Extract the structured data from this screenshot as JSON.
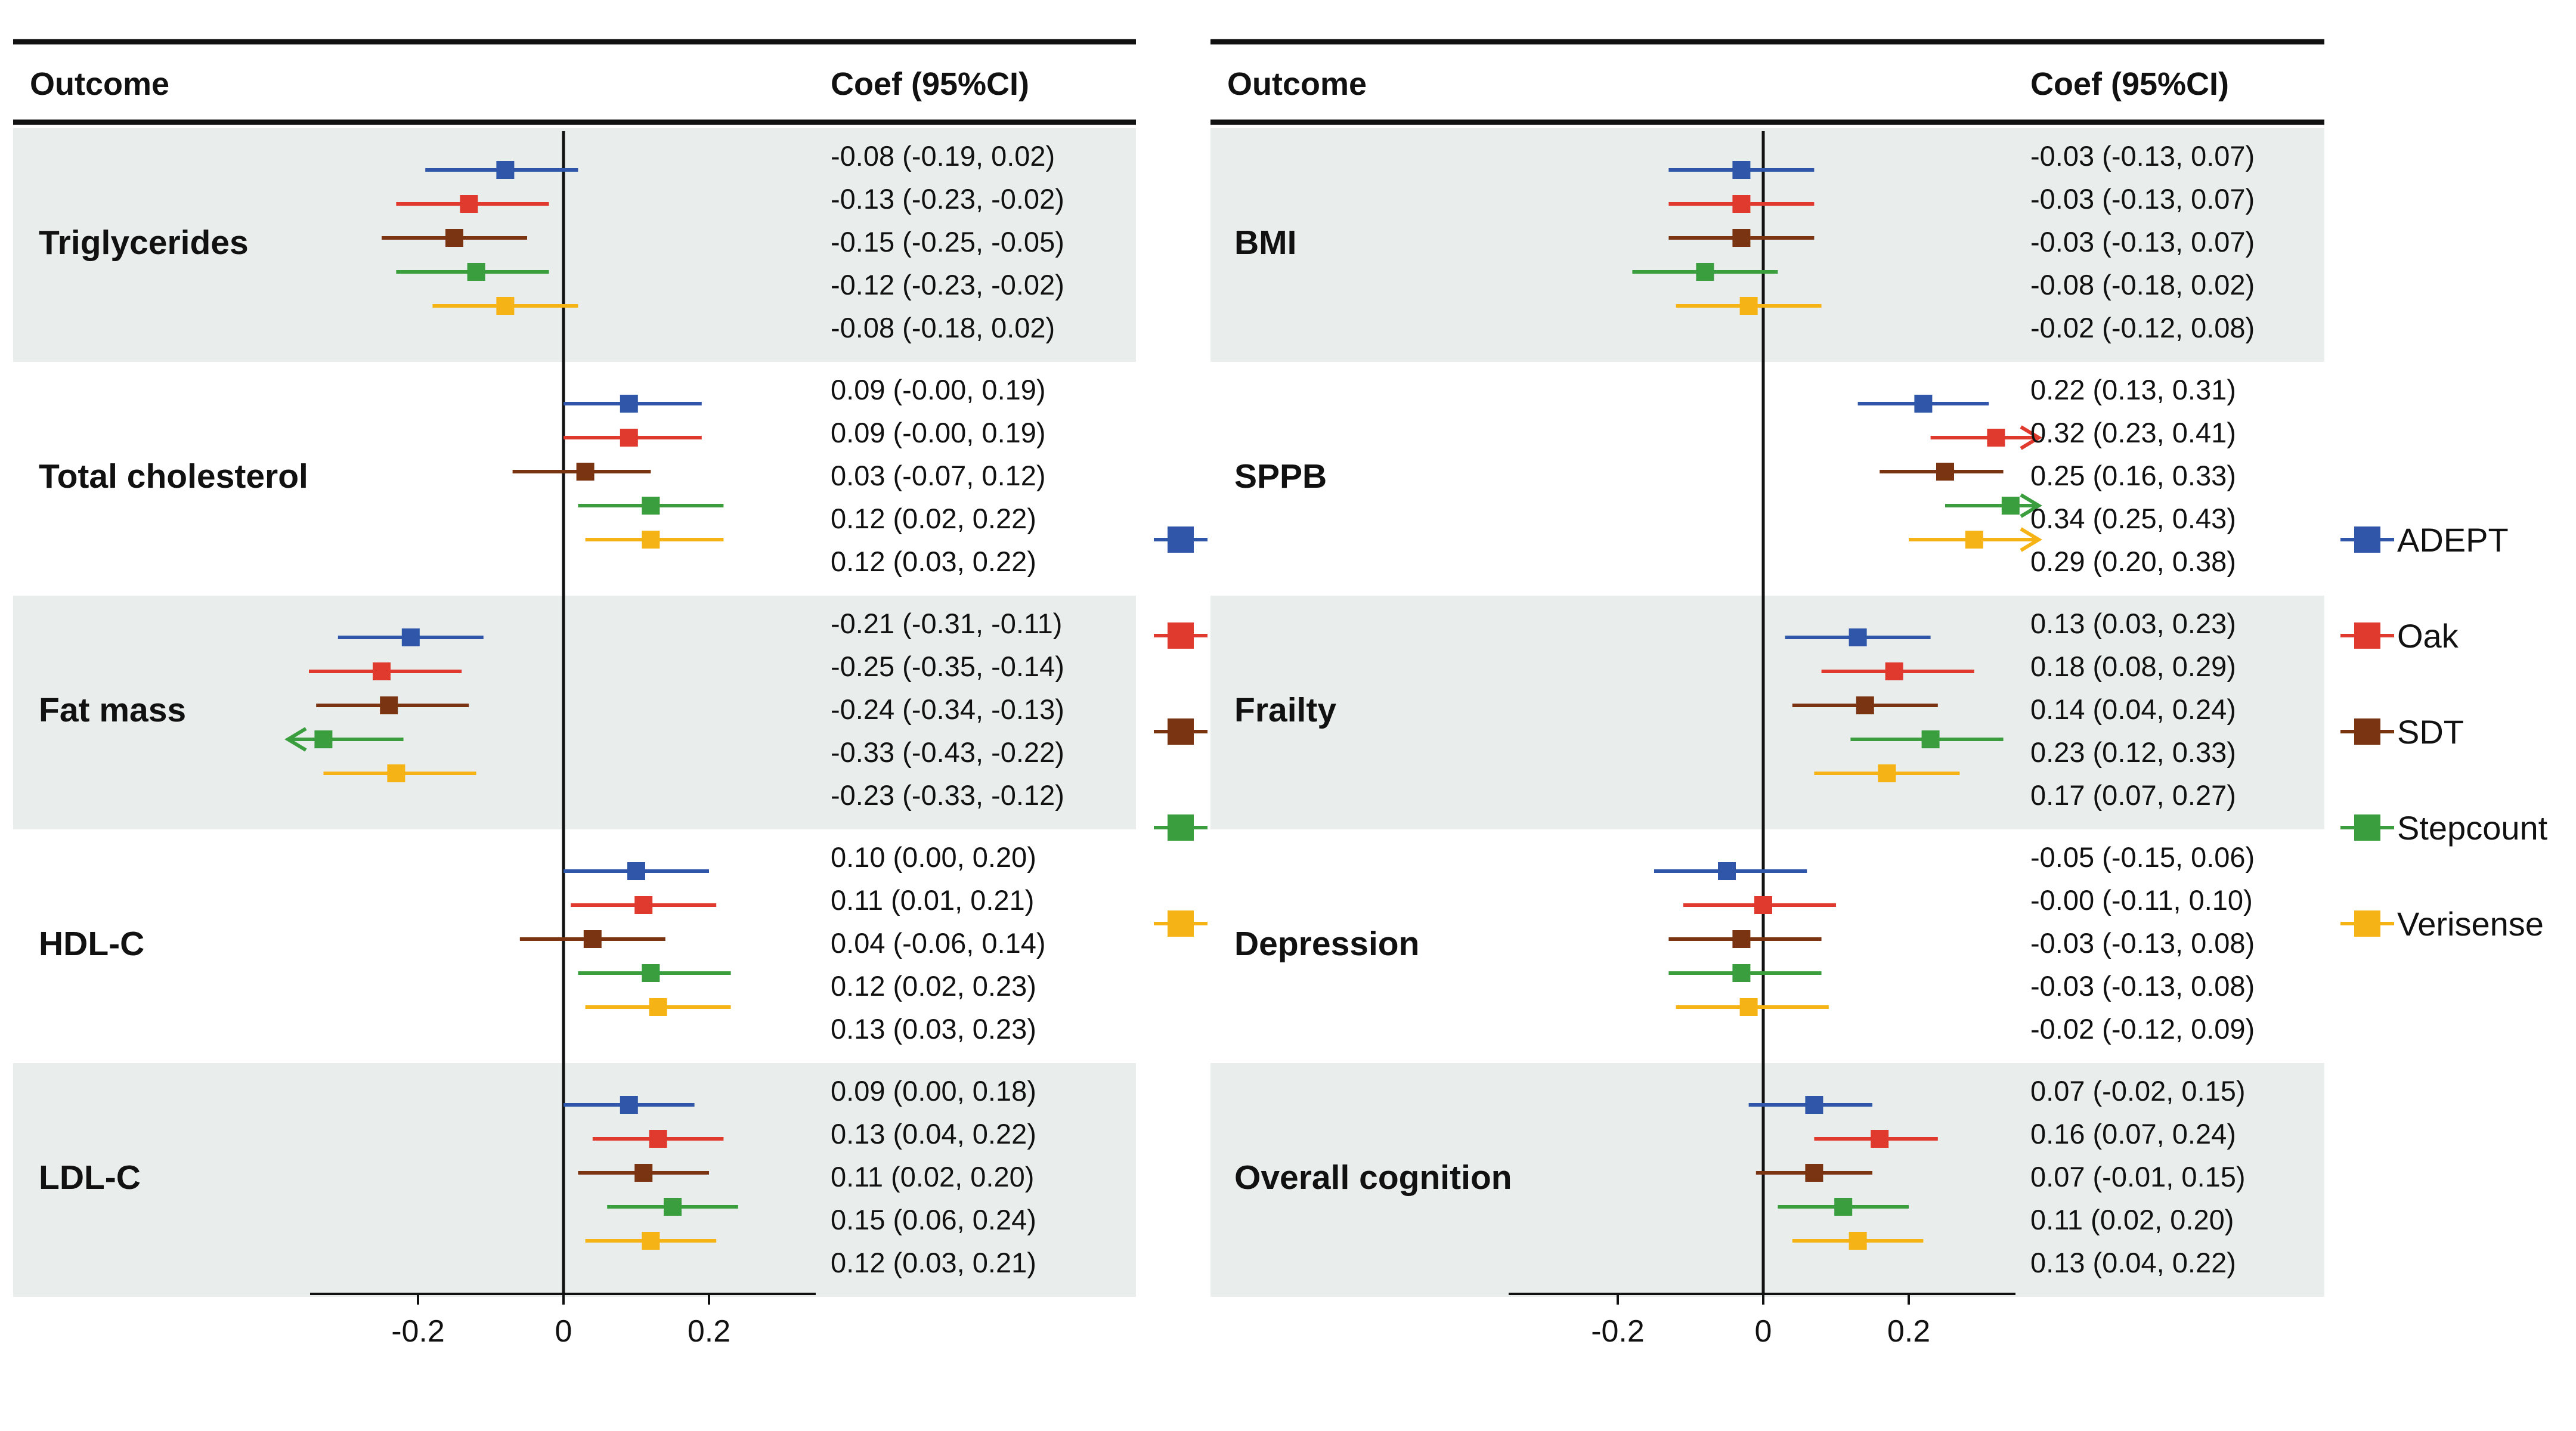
{
  "colors": {
    "ADEPT": "#2f56a8",
    "Oak": "#e03a2f",
    "SDT": "#7b3411",
    "Stepcount": "#3a9e3e",
    "Verisense": "#f6b315",
    "band": "#e9eeec",
    "rule": "#111111"
  },
  "legend": {
    "position": "right",
    "items": [
      "ADEPT",
      "Oak",
      "SDT",
      "Stepcount",
      "Verisense"
    ]
  },
  "chart_data": [
    {
      "type": "forest",
      "header": {
        "outcome": "Outcome",
        "coef": "Coef (95%CI)"
      },
      "xlim": [
        -0.35,
        0.35
      ],
      "xticks": [
        -0.2,
        0,
        0.2
      ],
      "xtick_labels": [
        "-0.2",
        "0",
        "0.2"
      ],
      "reference_line": 0,
      "series_names": [
        "ADEPT",
        "Oak",
        "SDT",
        "Stepcount",
        "Verisense"
      ],
      "outcomes": [
        {
          "name": "Triglycerides",
          "shaded": true,
          "est": [
            -0.08,
            -0.13,
            -0.15,
            -0.12,
            -0.08
          ],
          "lo": [
            -0.19,
            -0.23,
            -0.25,
            -0.23,
            -0.18
          ],
          "hi": [
            0.02,
            -0.02,
            -0.05,
            -0.02,
            0.02
          ],
          "labels": [
            "-0.08 (-0.19, 0.02)",
            "-0.13 (-0.23, -0.02)",
            "-0.15 (-0.25, -0.05)",
            "-0.12 (-0.23, -0.02)",
            "-0.08 (-0.18, 0.02)"
          ]
        },
        {
          "name": "Total cholesterol",
          "shaded": false,
          "est": [
            0.09,
            0.09,
            0.03,
            0.12,
            0.12
          ],
          "lo": [
            -0.0,
            -0.0,
            -0.07,
            0.02,
            0.03
          ],
          "hi": [
            0.19,
            0.19,
            0.12,
            0.22,
            0.22
          ],
          "labels": [
            "0.09 (-0.00, 0.19)",
            "0.09 (-0.00, 0.19)",
            "0.03 (-0.07, 0.12)",
            "0.12 (0.02, 0.22)",
            "0.12 (0.03, 0.22)"
          ]
        },
        {
          "name": "Fat mass",
          "shaded": true,
          "est": [
            -0.21,
            -0.25,
            -0.24,
            -0.33,
            -0.23
          ],
          "lo": [
            -0.31,
            -0.35,
            -0.34,
            -0.43,
            -0.33
          ],
          "hi": [
            -0.11,
            -0.14,
            -0.13,
            -0.22,
            -0.12
          ],
          "labels": [
            "-0.21 (-0.31, -0.11)",
            "-0.25 (-0.35, -0.14)",
            "-0.24 (-0.34, -0.13)",
            "-0.33 (-0.43, -0.22)",
            "-0.23 (-0.33, -0.12)"
          ]
        },
        {
          "name": "HDL-C",
          "shaded": false,
          "est": [
            0.1,
            0.11,
            0.04,
            0.12,
            0.13
          ],
          "lo": [
            0.0,
            0.01,
            -0.06,
            0.02,
            0.03
          ],
          "hi": [
            0.2,
            0.21,
            0.14,
            0.23,
            0.23
          ],
          "labels": [
            "0.10 (0.00, 0.20)",
            "0.11 (0.01, 0.21)",
            "0.04 (-0.06, 0.14)",
            "0.12 (0.02, 0.23)",
            "0.13 (0.03, 0.23)"
          ]
        },
        {
          "name": "LDL-C",
          "shaded": true,
          "est": [
            0.09,
            0.13,
            0.11,
            0.15,
            0.12
          ],
          "lo": [
            0.0,
            0.04,
            0.02,
            0.06,
            0.03
          ],
          "hi": [
            0.18,
            0.22,
            0.2,
            0.24,
            0.21
          ],
          "labels": [
            "0.09 (0.00, 0.18)",
            "0.13 (0.04, 0.22)",
            "0.11 (0.02, 0.20)",
            "0.15 (0.06, 0.24)",
            "0.12 (0.03, 0.21)"
          ]
        }
      ]
    },
    {
      "type": "forest",
      "header": {
        "outcome": "Outcome",
        "coef": "Coef (95%CI)"
      },
      "xlim": [
        -0.35,
        0.35
      ],
      "xticks": [
        -0.2,
        0,
        0.2
      ],
      "xtick_labels": [
        "-0.2",
        "0",
        "0.2"
      ],
      "reference_line": 0,
      "series_names": [
        "ADEPT",
        "Oak",
        "SDT",
        "Stepcount",
        "Verisense"
      ],
      "outcomes": [
        {
          "name": "BMI",
          "shaded": true,
          "est": [
            -0.03,
            -0.03,
            -0.03,
            -0.08,
            -0.02
          ],
          "lo": [
            -0.13,
            -0.13,
            -0.13,
            -0.18,
            -0.12
          ],
          "hi": [
            0.07,
            0.07,
            0.07,
            0.02,
            0.08
          ],
          "labels": [
            "-0.03 (-0.13, 0.07)",
            "-0.03 (-0.13, 0.07)",
            "-0.03 (-0.13, 0.07)",
            "-0.08 (-0.18, 0.02)",
            "-0.02 (-0.12, 0.08)"
          ]
        },
        {
          "name": "SPPB",
          "shaded": false,
          "est": [
            0.22,
            0.32,
            0.25,
            0.34,
            0.29
          ],
          "lo": [
            0.13,
            0.23,
            0.16,
            0.25,
            0.2
          ],
          "hi": [
            0.31,
            0.41,
            0.33,
            0.43,
            0.38
          ],
          "labels": [
            "0.22 (0.13, 0.31)",
            "0.32 (0.23, 0.41)",
            "0.25 (0.16, 0.33)",
            "0.34 (0.25, 0.43)",
            "0.29 (0.20, 0.38)"
          ]
        },
        {
          "name": "Frailty",
          "shaded": true,
          "est": [
            0.13,
            0.18,
            0.14,
            0.23,
            0.17
          ],
          "lo": [
            0.03,
            0.08,
            0.04,
            0.12,
            0.07
          ],
          "hi": [
            0.23,
            0.29,
            0.24,
            0.33,
            0.27
          ],
          "labels": [
            "0.13 (0.03, 0.23)",
            "0.18 (0.08, 0.29)",
            "0.14 (0.04, 0.24)",
            "0.23 (0.12, 0.33)",
            "0.17 (0.07, 0.27)"
          ]
        },
        {
          "name": "Depression",
          "shaded": false,
          "est": [
            -0.05,
            -0.0,
            -0.03,
            -0.03,
            -0.02
          ],
          "lo": [
            -0.15,
            -0.11,
            -0.13,
            -0.13,
            -0.12
          ],
          "hi": [
            0.06,
            0.1,
            0.08,
            0.08,
            0.09
          ],
          "labels": [
            "-0.05 (-0.15, 0.06)",
            "-0.00 (-0.11, 0.10)",
            "-0.03 (-0.13, 0.08)",
            "-0.03 (-0.13, 0.08)",
            "-0.02 (-0.12, 0.09)"
          ]
        },
        {
          "name": "Overall cognition",
          "shaded": true,
          "est": [
            0.07,
            0.16,
            0.07,
            0.11,
            0.13
          ],
          "lo": [
            -0.02,
            0.07,
            -0.01,
            0.02,
            0.04
          ],
          "hi": [
            0.15,
            0.24,
            0.15,
            0.2,
            0.22
          ],
          "labels": [
            "0.07 (-0.02, 0.15)",
            "0.16 (0.07, 0.24)",
            "0.07 (-0.01, 0.15)",
            "0.11 (0.02, 0.20)",
            "0.13 (0.04, 0.22)"
          ]
        }
      ]
    }
  ]
}
